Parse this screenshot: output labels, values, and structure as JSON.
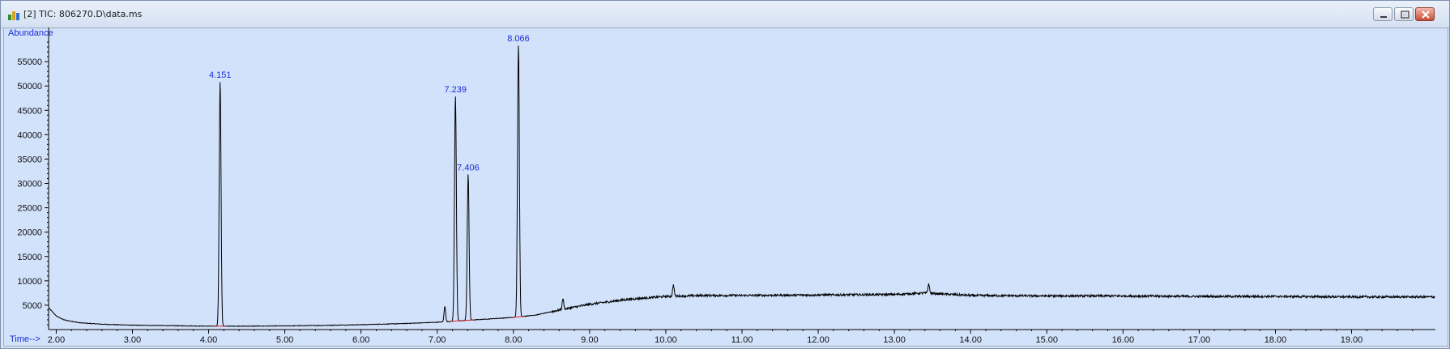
{
  "window": {
    "title": "[2] TIC: 806270.D\\data.ms",
    "icon": "chromatogram-app-icon",
    "buttons": [
      "minimize-icon",
      "restore-icon",
      "close-icon"
    ]
  },
  "chart_data": {
    "type": "line",
    "title": "",
    "xlabel": "Time-->",
    "ylabel": "Abundance",
    "xlim": [
      1.9,
      20.1
    ],
    "ylim": [
      0,
      61000
    ],
    "grid": false,
    "color": "#000000",
    "x_ticks": [
      "2.00",
      "3.00",
      "4.00",
      "5.00",
      "6.00",
      "7.00",
      "8.00",
      "9.00",
      "10.00",
      "11.00",
      "12.00",
      "13.00",
      "14.00",
      "15.00",
      "16.00",
      "17.00",
      "18.00",
      "19.00"
    ],
    "y_ticks": [
      "5000",
      "10000",
      "15000",
      "20000",
      "25000",
      "30000",
      "35000",
      "40000",
      "45000",
      "50000",
      "55000"
    ],
    "baseline": {
      "x": [
        1.9,
        2.0,
        2.1,
        2.3,
        2.6,
        3.0,
        3.5,
        4.0,
        4.5,
        5.0,
        5.5,
        6.0,
        6.5,
        7.0,
        7.5,
        8.0,
        8.3,
        8.6,
        9.0,
        9.5,
        10.0,
        10.5,
        11.0,
        12.0,
        13.0,
        13.4,
        14.0,
        15.0,
        16.0,
        17.0,
        18.0,
        19.0,
        20.1
      ],
      "y": [
        4500,
        2800,
        2000,
        1400,
        1100,
        900,
        800,
        700,
        700,
        750,
        850,
        1000,
        1200,
        1500,
        2000,
        2500,
        3000,
        4000,
        5200,
        6200,
        6800,
        7000,
        7000,
        7100,
        7200,
        7500,
        7000,
        6900,
        6900,
        6800,
        6800,
        6700,
        6700
      ]
    },
    "peaks": [
      {
        "rt": 4.151,
        "label": "4.151",
        "height": 51000
      },
      {
        "rt": 7.239,
        "label": "7.239",
        "height": 48000
      },
      {
        "rt": 7.406,
        "label": "7.406",
        "height": 32000
      },
      {
        "rt": 8.066,
        "label": "8.066",
        "height": 58500
      }
    ],
    "minor_peaks": [
      {
        "rt": 7.1,
        "height": 4800
      },
      {
        "rt": 8.65,
        "height": 6300
      },
      {
        "rt": 10.1,
        "height": 9200
      },
      {
        "rt": 13.45,
        "height": 9400
      }
    ]
  }
}
